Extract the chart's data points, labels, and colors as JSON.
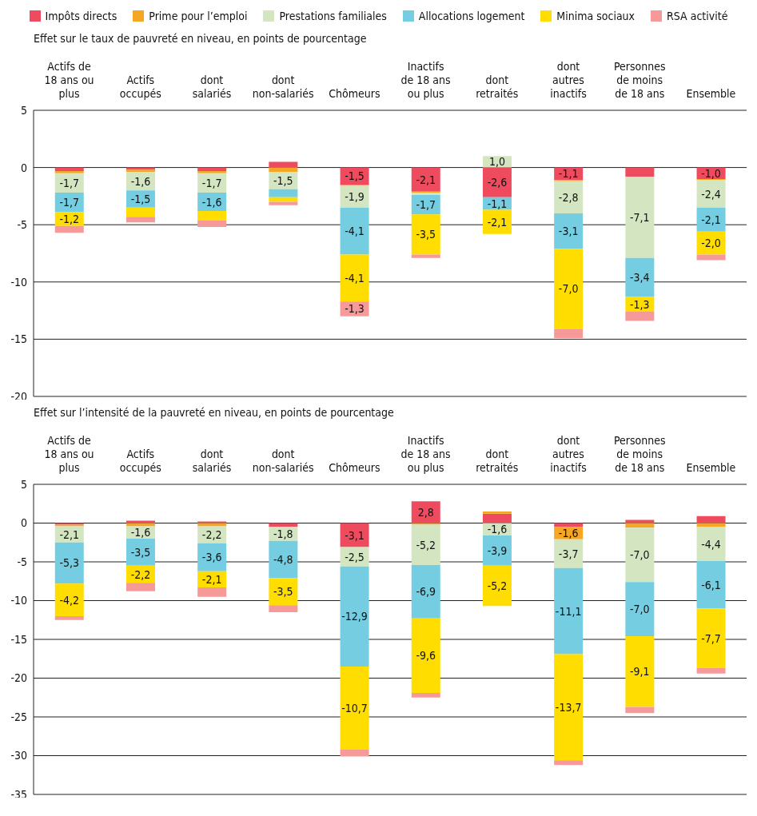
{
  "chart_data": [
    {
      "type": "bar",
      "stacked": true,
      "title": "Effet sur le taux de pauvreté en niveau, en points de pourcentage",
      "categories": [
        "Actifs de 18 ans ou plus",
        "Actifs occupés",
        "dont salariés",
        "dont non-salariés",
        "Chômeurs",
        "Inactifs de 18 ans ou plus",
        "dont retraités",
        "dont autres inactifs",
        "Personnes de moins de 18 ans",
        "Ensemble"
      ],
      "ylim": [
        -20,
        5
      ],
      "yticks": [
        -20,
        -15,
        -10,
        -5,
        0,
        5
      ],
      "grid": "y",
      "legend": "top",
      "series": [
        {
          "name": "Impôts directs",
          "color": "#ee4b5e",
          "values": [
            -0.3,
            -0.2,
            -0.3,
            0.5,
            -1.5,
            -2.1,
            -2.6,
            -1.1,
            -0.8,
            -1.0
          ],
          "value_labels": [
            null,
            null,
            null,
            null,
            "-1,5",
            "-2,1",
            "-2,6",
            "-1,1",
            null,
            "-1,0"
          ]
        },
        {
          "name": "Prime pour l’emploi",
          "color": "#f5a623",
          "values": [
            -0.2,
            -0.2,
            -0.2,
            -0.4,
            -0.1,
            -0.1,
            0,
            -0.1,
            0,
            -0.1
          ],
          "value_labels": [
            null,
            null,
            null,
            null,
            null,
            null,
            null,
            null,
            null,
            null
          ]
        },
        {
          "name": "Prestations familiales",
          "color": "#d3e6c1",
          "values": [
            -1.7,
            -1.6,
            -1.7,
            -1.5,
            -1.9,
            -0.2,
            1.0,
            -2.8,
            -7.1,
            -2.4
          ],
          "value_labels": [
            "-1,7",
            "-1,6",
            "-1,7",
            "-1,5",
            "-1,9",
            null,
            "1,0",
            "-2,8",
            "-7,1",
            "-2,4"
          ]
        },
        {
          "name": "Allocations logement",
          "color": "#74cde0",
          "values": [
            -1.7,
            -1.5,
            -1.6,
            -0.7,
            -4.1,
            -1.7,
            -1.1,
            -3.1,
            -3.4,
            -2.1
          ],
          "value_labels": [
            "-1,7",
            "-1,5",
            "-1,6",
            null,
            "-4,1",
            "-1,7",
            "-1,1",
            "-3,1",
            "-3,4",
            "-2,1"
          ]
        },
        {
          "name": "Minima sociaux",
          "color": "#ffdd00",
          "values": [
            -1.2,
            -0.8,
            -0.8,
            -0.4,
            -4.1,
            -3.5,
            -2.1,
            -7.0,
            -1.3,
            -2.0
          ],
          "value_labels": [
            "-1,2",
            null,
            null,
            null,
            "-4,1",
            "-3,5",
            "-2,1",
            "-7,0",
            "-1,3",
            "-2,0"
          ]
        },
        {
          "name": "RSA activité",
          "color": "#f59a98",
          "values": [
            -0.6,
            -0.5,
            -0.6,
            -0.3,
            -1.3,
            -0.3,
            0,
            -0.8,
            -0.8,
            -0.5
          ],
          "value_labels": [
            null,
            null,
            null,
            null,
            "-1,3",
            null,
            null,
            null,
            null,
            null
          ]
        }
      ]
    },
    {
      "type": "bar",
      "stacked": true,
      "title": "Effet sur l’intensité de la pauvreté en niveau, en points de pourcentage",
      "categories": [
        "Actifs de 18 ans ou plus",
        "Actifs occupés",
        "dont salariés",
        "dont non-salariés",
        "Chômeurs",
        "Inactifs de 18 ans ou plus",
        "dont retraités",
        "dont autres inactifs",
        "Personnes de moins de 18 ans",
        "Ensemble"
      ],
      "ylim": [
        -35,
        5
      ],
      "yticks": [
        -35,
        -30,
        -25,
        -20,
        -15,
        -10,
        -5,
        0,
        5
      ],
      "grid": "y",
      "series": [
        {
          "color": "#ee4b5e",
          "values": [
            -0.2,
            0.3,
            0.2,
            -0.5,
            -3.1,
            2.8,
            1.2,
            -0.5,
            0.4,
            0.9
          ],
          "value_labels": [
            null,
            null,
            null,
            null,
            "-3,1",
            "2,8",
            null,
            null,
            null,
            null
          ]
        },
        {
          "color": "#f5a623",
          "values": [
            -0.2,
            -0.4,
            -0.4,
            0,
            0,
            -0.2,
            0.3,
            -1.6,
            -0.6,
            -0.5
          ],
          "value_labels": [
            null,
            null,
            null,
            null,
            null,
            null,
            null,
            "-1,6",
            null,
            null
          ]
        },
        {
          "color": "#d3e6c1",
          "values": [
            -2.1,
            -1.6,
            -2.2,
            -1.8,
            -2.5,
            -5.2,
            -1.6,
            -3.7,
            -7.0,
            -4.4
          ],
          "value_labels": [
            "-2,1",
            "-1,6",
            "-2,2",
            "-1,8",
            "-2,5",
            "-5,2",
            "-1,6",
            "-3,7",
            "-7,0",
            "-4,4"
          ]
        },
        {
          "color": "#74cde0",
          "values": [
            -5.3,
            -3.5,
            -3.6,
            -4.8,
            -12.9,
            -6.9,
            -3.9,
            -11.1,
            -7.0,
            -6.1
          ],
          "value_labels": [
            "-5,3",
            "-3,5",
            "-3,6",
            "-4,8",
            "-12,9",
            "-6,9",
            "-3,9",
            "-11,1",
            "-7,0",
            "-6,1"
          ]
        },
        {
          "color": "#ffdd00",
          "values": [
            -4.2,
            -2.2,
            -2.1,
            -3.5,
            -10.7,
            -9.6,
            -5.2,
            -13.7,
            -9.1,
            -7.7
          ],
          "value_labels": [
            "-4,2",
            "-2,2",
            "-2,1",
            "-3,5",
            "-10,7",
            "-9,6",
            "-5,2",
            "-13,7",
            "-9,1",
            "-7,7"
          ]
        },
        {
          "color": "#f59a98",
          "values": [
            -0.5,
            -1.1,
            -1.2,
            -0.9,
            -0.9,
            -0.6,
            0,
            -0.6,
            -0.8,
            -0.7
          ],
          "value_labels": [
            null,
            null,
            null,
            null,
            null,
            null,
            null,
            null,
            null,
            null
          ]
        }
      ]
    }
  ]
}
